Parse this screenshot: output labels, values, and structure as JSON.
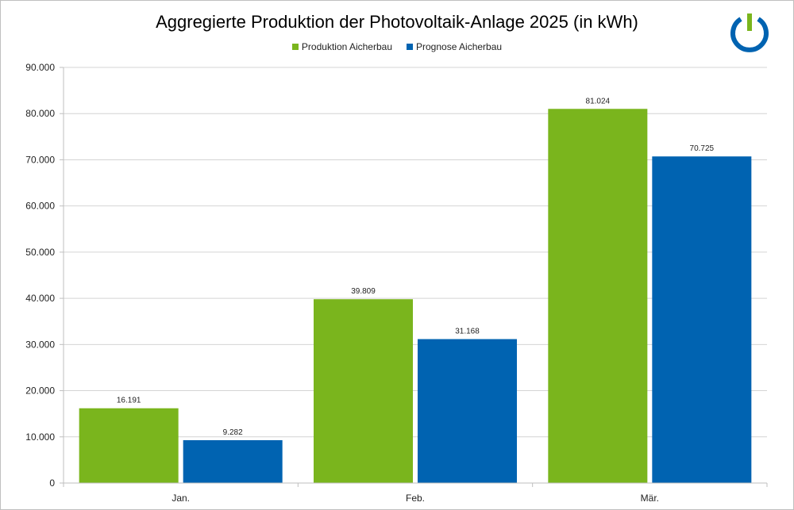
{
  "chart_data": {
    "type": "bar",
    "title": "Aggregierte Produktion der Photovoltaik-Anlage 2025 (in kWh)",
    "categories": [
      "Jan.",
      "Feb.",
      "Mär."
    ],
    "series": [
      {
        "name": "Produktion Aicherbau",
        "color": "#7ab51d",
        "values": [
          16191,
          39809,
          81024
        ],
        "labels": [
          "16.191",
          "39.809",
          "81.024"
        ]
      },
      {
        "name": "Prognose Aicherbau",
        "color": "#0063b1",
        "values": [
          9282,
          31168,
          70725
        ],
        "labels": [
          "9.282",
          "31.168",
          "70.725"
        ]
      }
    ],
    "ylim": [
      0,
      90000
    ],
    "yticks": [
      0,
      10000,
      20000,
      30000,
      40000,
      50000,
      60000,
      70000,
      80000,
      90000
    ],
    "ytick_labels": [
      "0",
      "10.000",
      "20.000",
      "30.000",
      "40.000",
      "50.000",
      "60.000",
      "70.000",
      "80.000",
      "90.000"
    ],
    "grid": true,
    "legend_position": "top-center",
    "xlabel": "",
    "ylabel": ""
  },
  "logo": {
    "name": "power-logo-icon",
    "ring_color": "#0063b1",
    "bar_color": "#7ab51d"
  }
}
